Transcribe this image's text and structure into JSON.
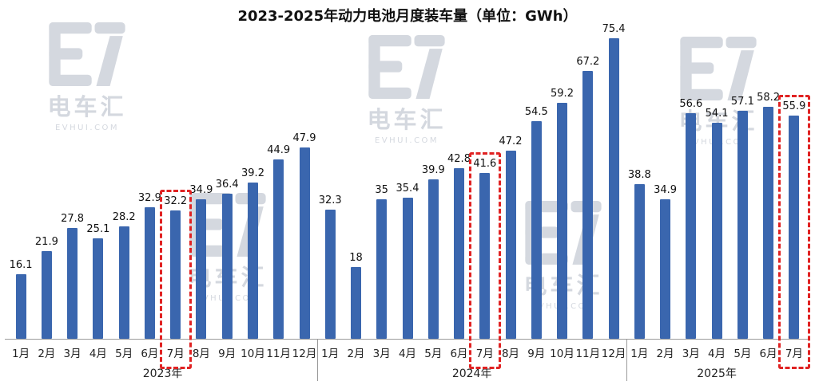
{
  "chart": {
    "title": "2023-2025年动力电池月度装车量（单位：GWh）"
  },
  "watermark": {
    "name": "电车汇",
    "site": "EVHUI.COM"
  },
  "chart_data": {
    "type": "bar",
    "title": "2023-2025年动力电池月度装车量（单位：GWh）",
    "ylabel": "GWh",
    "ylim": [
      0,
      80
    ],
    "grid": false,
    "legend": "none",
    "bar_color": "#3A66AE",
    "highlight_color": "#E02222",
    "groups": [
      {
        "year": "2023年",
        "months": [
          "1月",
          "2月",
          "3月",
          "4月",
          "5月",
          "6月",
          "7月",
          "8月",
          "9月",
          "10月",
          "11月",
          "12月"
        ],
        "values": [
          16.1,
          21.9,
          27.8,
          25.1,
          28.2,
          32.9,
          32.2,
          34.9,
          36.4,
          39.2,
          44.9,
          47.9
        ],
        "highlight_month": "7月"
      },
      {
        "year": "2024年",
        "months": [
          "1月",
          "2月",
          "3月",
          "4月",
          "5月",
          "6月",
          "7月",
          "8月",
          "9月",
          "10月",
          "11月",
          "12月"
        ],
        "values": [
          32.3,
          18,
          35,
          35.4,
          39.9,
          42.8,
          41.6,
          47.2,
          54.5,
          59.2,
          67.2,
          75.4
        ],
        "highlight_month": "7月"
      },
      {
        "year": "2025年",
        "months": [
          "1月",
          "2月",
          "3月",
          "4月",
          "5月",
          "6月",
          "7月"
        ],
        "values": [
          38.8,
          34.9,
          56.6,
          54.1,
          57.1,
          58.2,
          55.9
        ],
        "highlight_month": "7月"
      }
    ]
  }
}
